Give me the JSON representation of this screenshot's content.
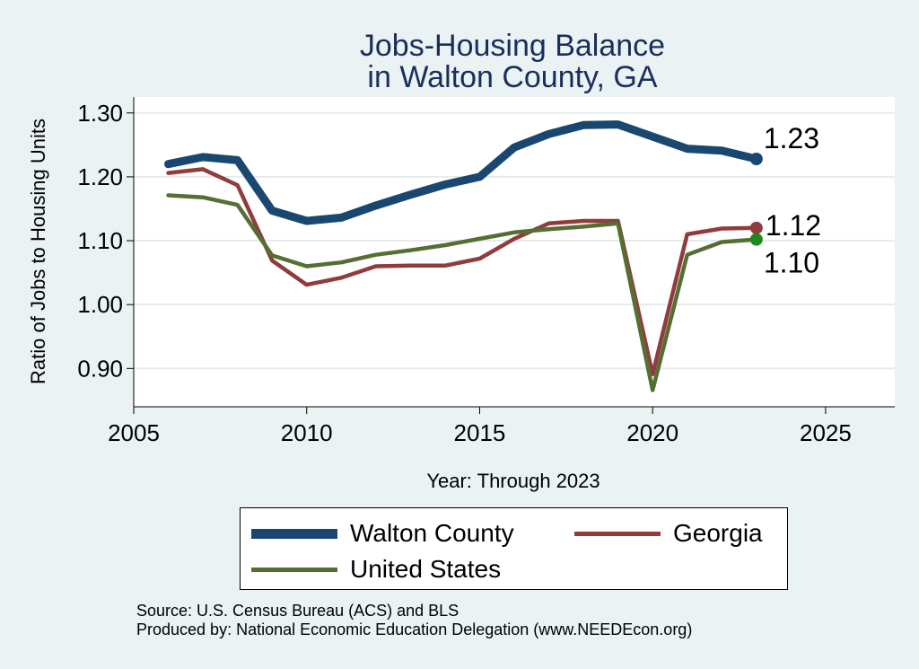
{
  "chart_data": {
    "type": "line",
    "title": "Jobs-Housing Balance",
    "subtitle": "in Walton County, GA",
    "xlabel": "Year: Through 2023",
    "ylabel": "Ratio of Jobs to Housing Units",
    "xlim": [
      2005,
      2027
    ],
    "ylim": [
      0.84,
      1.325
    ],
    "x_ticks": [
      "2005",
      "2010",
      "2015",
      "2020",
      "2025"
    ],
    "y_ticks": [
      "0.90",
      "1.00",
      "1.10",
      "1.20",
      "1.30"
    ],
    "grid": true,
    "legend_position": "bottom",
    "x": [
      2006,
      2007,
      2008,
      2009,
      2010,
      2011,
      2012,
      2013,
      2014,
      2015,
      2016,
      2017,
      2018,
      2019,
      2020,
      2021,
      2022,
      2023
    ],
    "series": [
      {
        "name": "Walton County",
        "color": "#1a4770",
        "values": [
          1.22,
          1.231,
          1.226,
          1.147,
          1.131,
          1.136,
          1.155,
          1.172,
          1.188,
          1.2,
          1.246,
          1.267,
          1.281,
          1.282,
          1.263,
          1.244,
          1.241,
          1.228
        ],
        "end_label": "1.23"
      },
      {
        "name": "Georgia",
        "color": "#903c3e",
        "values": [
          1.206,
          1.212,
          1.187,
          1.069,
          1.031,
          1.042,
          1.06,
          1.061,
          1.061,
          1.072,
          1.103,
          1.127,
          1.131,
          1.131,
          0.891,
          1.11,
          1.119,
          1.12
        ],
        "end_label": "1.12"
      },
      {
        "name": "United States",
        "color": "#556f32",
        "end_marker_color": "#1c8a1c",
        "values": [
          1.171,
          1.168,
          1.156,
          1.077,
          1.06,
          1.066,
          1.078,
          1.085,
          1.093,
          1.103,
          1.113,
          1.118,
          1.122,
          1.127,
          0.866,
          1.078,
          1.098,
          1.102
        ],
        "end_label": "1.10"
      }
    ]
  },
  "legend": {
    "walton": "Walton County",
    "georgia": "Georgia",
    "us": "United States"
  },
  "source": {
    "line1": "Source: U.S. Census Bureau (ACS) and BLS",
    "line2": "Produced by: National Economic Education Delegation (www.NEEDEcon.org)"
  }
}
